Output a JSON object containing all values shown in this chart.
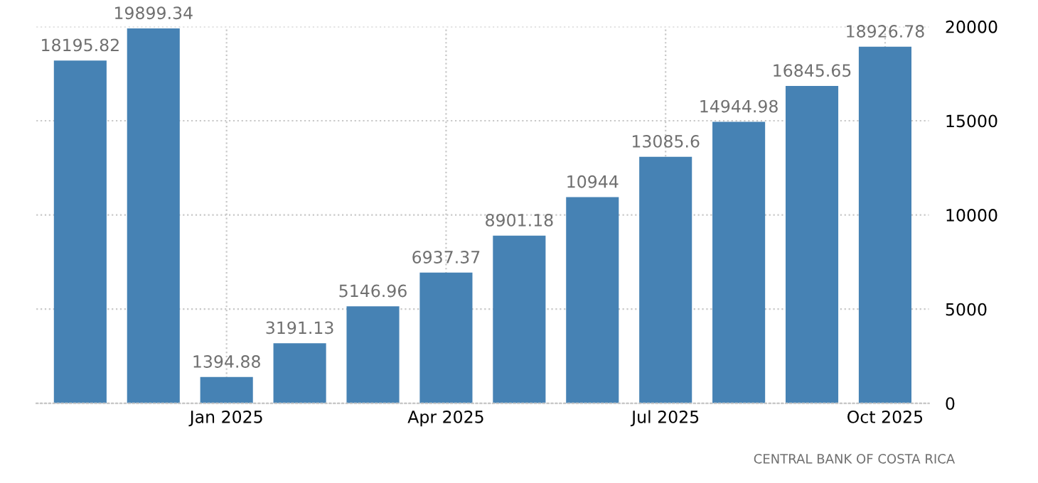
{
  "chart_data": {
    "type": "bar",
    "categories": [
      null,
      null,
      "Jan 2025",
      null,
      null,
      "Apr 2025",
      null,
      null,
      "Jul 2025",
      null,
      null,
      "Oct 2025"
    ],
    "values": [
      18195.82,
      19899.34,
      1394.88,
      3191.13,
      5146.96,
      6937.37,
      8901.18,
      10944,
      13085.6,
      14944.98,
      16845.65,
      18926.78
    ],
    "color": "#4682b4",
    "ylim": [
      0,
      20000
    ],
    "yticks": [
      0,
      5000,
      10000,
      15000,
      20000
    ],
    "grid": true,
    "data_labels": true,
    "annotations": [
      "CENTRAL BANK OF COSTA RICA"
    ]
  }
}
